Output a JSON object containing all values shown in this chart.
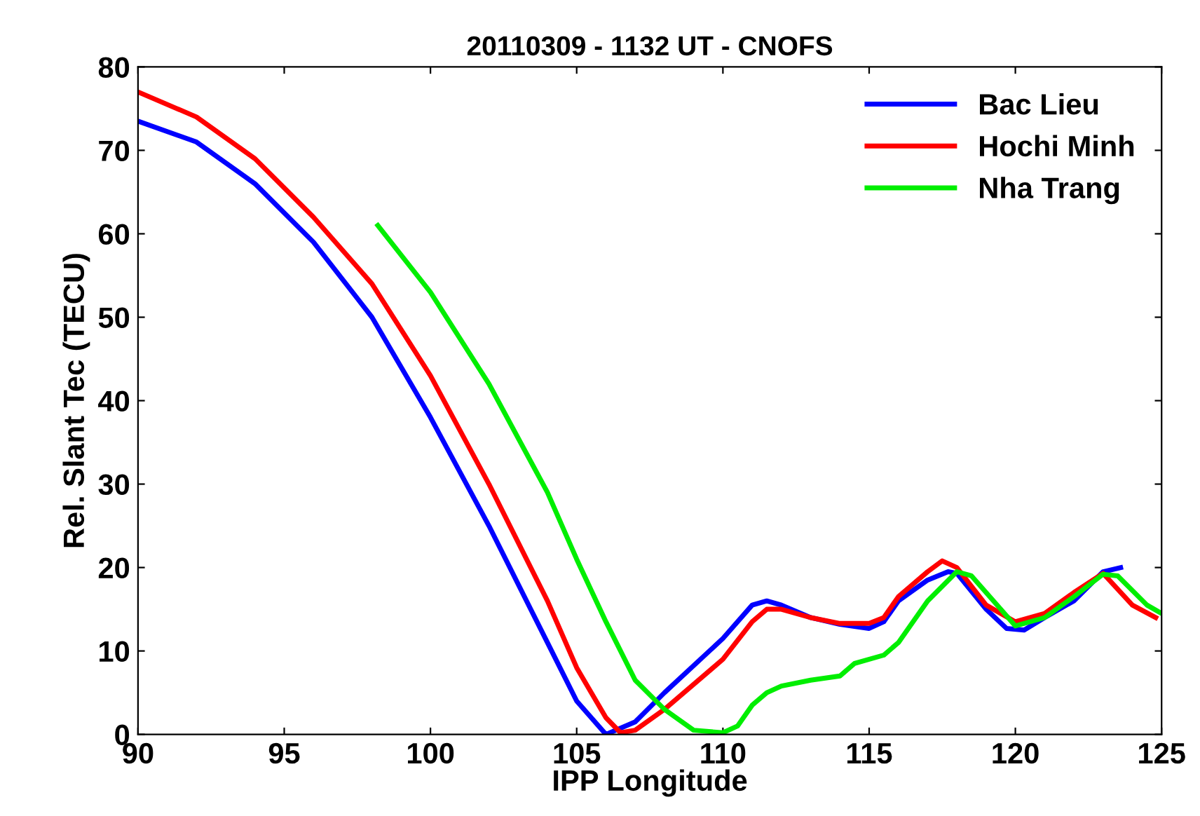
{
  "chart_data": {
    "type": "line",
    "title": "20110309 - 1132 UT - CNOFS",
    "xlabel": "IPP Longitude",
    "ylabel": "Rel. Slant Tec (TECU)",
    "xlim": [
      90,
      125
    ],
    "xticks": [
      90,
      95,
      100,
      105,
      110,
      115,
      120,
      125
    ],
    "ylim": [
      0,
      80
    ],
    "yticks": [
      0,
      10,
      20,
      30,
      40,
      50,
      60,
      70,
      80
    ],
    "grid": false,
    "legend": "top right",
    "series": [
      {
        "name": "Bac Lieu",
        "color": "#0000ff",
        "x": [
          90,
          92,
          94,
          96,
          98,
          100,
          102,
          104,
          105,
          106,
          107,
          108,
          110,
          111,
          111.5,
          112,
          113,
          114,
          115,
          115.5,
          116,
          117,
          117.7,
          118,
          119,
          119.7,
          120.3,
          121,
          122,
          123,
          123.6
        ],
        "values": [
          73.5,
          71,
          66,
          59,
          50,
          38,
          25,
          11,
          4,
          0,
          1.5,
          5,
          11.5,
          15.5,
          16,
          15.5,
          14,
          13.2,
          12.7,
          13.5,
          16,
          18.5,
          19.5,
          19.3,
          15,
          12.7,
          12.5,
          14,
          16,
          19.5,
          20
        ]
      },
      {
        "name": "Hochi Minh",
        "color": "#ff0000",
        "x": [
          90,
          92,
          94,
          96,
          98,
          100,
          102,
          104,
          105,
          106,
          106.5,
          107,
          108,
          110,
          111,
          111.5,
          112,
          113,
          114,
          115,
          115.5,
          116,
          117,
          117.5,
          118,
          119,
          120,
          121,
          122,
          123,
          124,
          124.8
        ],
        "values": [
          77,
          74,
          69,
          62,
          54,
          43,
          30,
          16,
          8,
          2,
          0.2,
          0.5,
          3,
          9,
          13.5,
          15,
          15,
          14,
          13.3,
          13.3,
          14,
          16.5,
          19.5,
          20.8,
          20,
          15.5,
          13.5,
          14.5,
          17,
          19.3,
          15.5,
          14
        ]
      },
      {
        "name": "Nha Trang",
        "color": "#00ee00",
        "x": [
          98.2,
          100,
          102,
          104,
          105,
          106,
          107,
          108,
          109,
          110,
          110.5,
          111,
          111.5,
          112,
          113,
          114,
          114.5,
          115.5,
          116,
          117,
          118,
          118.5,
          119.5,
          120,
          121,
          122,
          123,
          123.5,
          124.5,
          125
        ],
        "values": [
          61,
          53,
          42,
          29,
          21,
          13.5,
          6.5,
          3,
          0.5,
          0.2,
          1,
          3.5,
          5,
          5.8,
          6.5,
          7,
          8.5,
          9.5,
          11,
          16,
          19.5,
          19,
          15,
          13,
          14,
          16.5,
          19.2,
          19,
          15.5,
          14.5
        ]
      }
    ]
  }
}
